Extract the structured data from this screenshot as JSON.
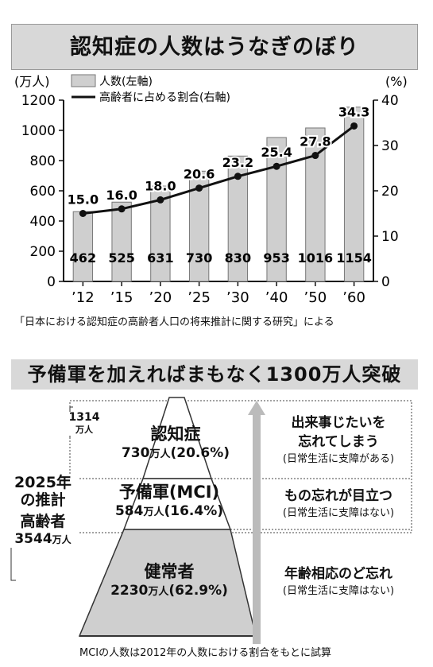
{
  "chart_data": {
    "type": "bar",
    "title": "認知症の人数はうなぎのぼり",
    "categories": [
      "’12",
      "’15",
      "’20",
      "’25",
      "’30",
      "’40",
      "’50",
      "’60"
    ],
    "series": [
      {
        "name": "人数(左軸)",
        "type": "bar",
        "values": [
          462,
          525,
          631,
          730,
          830,
          953,
          1016,
          1154
        ],
        "axis": "left"
      },
      {
        "name": "高齢者に占める割合(右軸)",
        "type": "line",
        "values": [
          15.0,
          16.0,
          18.0,
          20.6,
          23.2,
          25.4,
          27.8,
          34.3
        ],
        "axis": "right"
      }
    ],
    "bar_labels": [
      "462",
      "525",
      "631",
      "730",
      "830",
      "953",
      "1016",
      "1154"
    ],
    "line_labels": [
      "15.0",
      "16.0",
      "18.0",
      "20.6",
      "23.2",
      "25.4",
      "27.8",
      "34.3"
    ],
    "ylabel_left": "(万人)",
    "ylabel_right": "(%)",
    "ylim_left": [
      0,
      1200
    ],
    "ylim_right": [
      0,
      40
    ],
    "yticks_left": [
      "0",
      "200",
      "400",
      "600",
      "800",
      "1000",
      "1200"
    ],
    "yticks_right": [
      "0",
      "10",
      "20",
      "30",
      "40"
    ],
    "legend_placement": "top-left",
    "source": "「日本における認知症の高齢者人口の将来推計に関する研究」による"
  },
  "pyramid": {
    "title": "予備軍を加えればまもなく1300万人突破",
    "top_total_num": "1314",
    "top_total_unit": "万人",
    "year_label_1": "2025年",
    "year_label_2": "の推計",
    "elderly_label": "高齢者",
    "elderly_num": "3544",
    "elderly_unit": "万人",
    "tiers": [
      {
        "name": "認知症",
        "num": "730",
        "unit": "万人",
        "pct": "(20.6%)",
        "desc1": "出来事じたいを",
        "desc2": "忘れてしまう",
        "note": "(日常生活に支障がある)",
        "value": 730
      },
      {
        "name": "予備軍(MCI)",
        "num": "584",
        "unit": "万人",
        "pct": "(16.4%)",
        "desc1": "もの忘れが目立つ",
        "desc2": "",
        "note": "(日常生活に支障はない)",
        "value": 584
      },
      {
        "name": "健常者",
        "num": "2230",
        "unit": "万人",
        "pct": "(62.9%)",
        "desc1": "年齢相応のど忘れ",
        "desc2": "",
        "note": "(日常生活に支障はない)",
        "value": 2230
      }
    ],
    "footnote": "MCIの人数は2012年の人数における割合をもとに試算"
  }
}
